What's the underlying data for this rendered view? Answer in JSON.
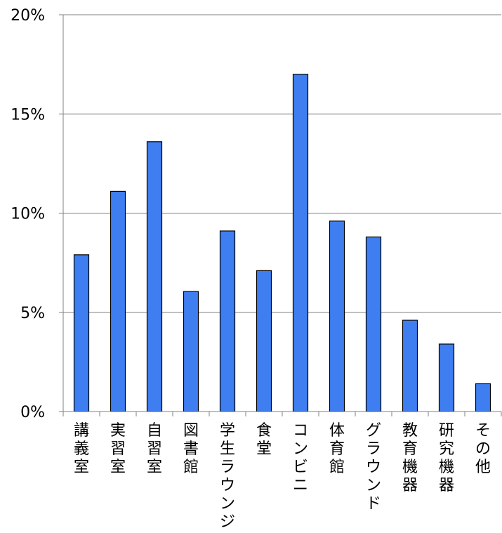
{
  "chart_data": {
    "type": "bar",
    "title": "",
    "xlabel": "",
    "ylabel": "",
    "categories": [
      "講義室",
      "実習室",
      "自習室",
      "図書館",
      "学生ラウンジ",
      "食堂",
      "コンビニ",
      "体育館",
      "グラウンド",
      "教育機器",
      "研究機器",
      "その他"
    ],
    "values": [
      7.9,
      11.1,
      13.6,
      6.05,
      9.1,
      7.1,
      17.0,
      9.6,
      8.8,
      4.6,
      3.4,
      1.4
    ],
    "ylim": [
      0,
      20
    ],
    "yticks": [
      "0%",
      "5%",
      "10%",
      "15%",
      "20%"
    ],
    "grid": true,
    "bar_color": "#3f7ef0",
    "bar_edge_color": "#000000",
    "grid_color": "#808080"
  }
}
